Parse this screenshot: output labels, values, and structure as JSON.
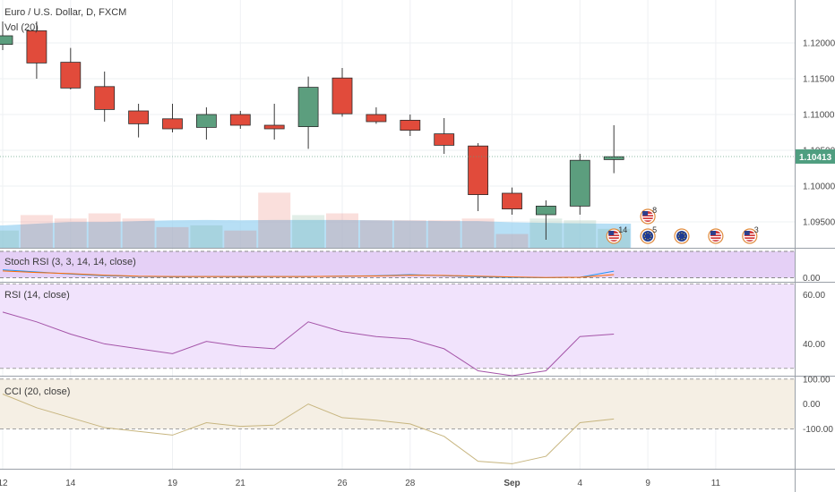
{
  "header": {
    "title": "Euro / U.S. Dollar, D, FXCM",
    "vol_label": "Vol (20)"
  },
  "colors": {
    "up": "#5c9e7e",
    "down": "#e14b3b",
    "grid": "#eef0f3",
    "stoch_band": "#e5d0f6",
    "rsi_band": "#f1e3fc",
    "cci_band": "#f5efe4",
    "vol_ma": "#9fd4f2",
    "last_price_bg": "#4f9e80"
  },
  "chart_data": [
    {
      "type": "candlestick",
      "title": "Euro / U.S. Dollar, D, FXCM",
      "x": [
        "Aug 12",
        "Aug 13",
        "Aug 14",
        "Aug 15",
        "Aug 16",
        "Aug 19",
        "Aug 20",
        "Aug 21",
        "Aug 22",
        "Aug 23",
        "Aug 26",
        "Aug 27",
        "Aug 28",
        "Aug 29",
        "Aug 30",
        "Sep 2",
        "Sep 3",
        "Sep 4",
        "Sep 5"
      ],
      "open": [
        1.1198,
        1.1217,
        1.1173,
        1.1139,
        1.1105,
        1.1094,
        1.1082,
        1.11,
        1.1085,
        1.1083,
        1.1151,
        1.11,
        1.1092,
        1.1073,
        1.1056,
        1.099,
        1.096,
        1.0972,
        1.1037
      ],
      "high": [
        1.123,
        1.123,
        1.1193,
        1.116,
        1.1115,
        1.1115,
        1.111,
        1.1105,
        1.1115,
        1.1153,
        1.1165,
        1.111,
        1.11,
        1.1095,
        1.106,
        1.0998,
        1.098,
        1.1045,
        1.1085
      ],
      "low": [
        1.119,
        1.115,
        1.1135,
        1.109,
        1.1068,
        1.1075,
        1.1065,
        1.108,
        1.1065,
        1.1052,
        1.1097,
        1.1087,
        1.107,
        1.1045,
        1.0965,
        1.096,
        1.0925,
        1.096,
        1.1018
      ],
      "close": [
        1.121,
        1.1172,
        1.1137,
        1.1107,
        1.1087,
        1.108,
        1.11,
        1.1085,
        1.108,
        1.1138,
        1.1101,
        1.109,
        1.1078,
        1.1057,
        1.0988,
        1.0968,
        1.0972,
        1.1036,
        1.1041
      ],
      "ylim": [
        1.0925,
        1.125
      ],
      "y_ticks": [
        "1.12000",
        "1.11500",
        "1.11000",
        "1.10500",
        "1.10000",
        "1.09500"
      ],
      "last_price": "1.10413",
      "x_tick_labels": [
        {
          "label": "12",
          "index": 0
        },
        {
          "label": "14",
          "index": 2
        },
        {
          "label": "19",
          "index": 5
        },
        {
          "label": "21",
          "index": 7
        },
        {
          "label": "26",
          "index": 10
        },
        {
          "label": "28",
          "index": 12
        },
        {
          "label": "Sep",
          "index": 15
        },
        {
          "label": "4",
          "index": 17
        },
        {
          "label": "9",
          "index": 19
        },
        {
          "label": "11",
          "index": 21
        }
      ]
    },
    {
      "type": "bar",
      "title": "Vol (20)",
      "values": [
        1.0,
        1.9,
        1.7,
        2.0,
        1.7,
        1.2,
        1.3,
        1.0,
        3.2,
        1.9,
        2.0,
        1.6,
        1.6,
        1.6,
        1.7,
        0.8,
        1.7,
        1.6,
        1.1
      ],
      "ma": [
        1.3,
        1.4,
        1.5,
        1.5,
        1.55,
        1.6,
        1.62,
        1.6,
        1.62,
        1.62,
        1.62,
        1.6,
        1.58,
        1.55,
        1.55,
        1.48,
        1.45,
        1.42,
        1.4
      ],
      "ylim": [
        0,
        4
      ]
    },
    {
      "type": "line",
      "title": "Stoch RSI (3, 3, 14, 14, close)",
      "series": [
        {
          "color": "#2196f3",
          "values": [
            30,
            22,
            14,
            8,
            5,
            4,
            5,
            4,
            5,
            5,
            6,
            8,
            12,
            8,
            4,
            1,
            0,
            2,
            25
          ]
        },
        {
          "color": "#ff6d00",
          "values": [
            26,
            20,
            16,
            10,
            6,
            5,
            5,
            5,
            5,
            5,
            6,
            7,
            10,
            9,
            6,
            3,
            1,
            2,
            12
          ]
        }
      ],
      "ylim": [
        -15,
        110
      ],
      "y_ticks": [
        "0.00"
      ]
    },
    {
      "type": "line",
      "title": "RSI (14, close)",
      "series": [
        {
          "color": "#a454a8",
          "values": [
            53,
            49,
            44,
            40,
            38,
            36,
            41,
            39,
            38,
            49,
            45,
            43,
            42,
            38,
            29,
            27,
            29,
            43,
            44
          ]
        }
      ],
      "ylim": [
        27,
        65
      ],
      "bands": [
        30,
        70
      ],
      "y_ticks": [
        "60.00",
        "40.00"
      ]
    },
    {
      "type": "line",
      "title": "CCI (20, close)",
      "series": [
        {
          "color": "#c7b57f",
          "values": [
            40,
            -15,
            -55,
            -95,
            -110,
            -125,
            -75,
            -90,
            -85,
            0,
            -55,
            -65,
            -80,
            -130,
            -230,
            -240,
            -210,
            -75,
            -60
          ]
        }
      ],
      "ylim": [
        -260,
        110
      ],
      "bands": [
        100,
        -100
      ],
      "y_ticks": [
        "100.00",
        "0.00",
        "-100.00"
      ]
    }
  ],
  "events": [
    {
      "label": "14",
      "flag": "us",
      "index": 18
    },
    {
      "label": "5",
      "flag": "eu",
      "index": 19
    },
    {
      "label": "8",
      "flag": "us",
      "index": 19
    },
    {
      "label": "",
      "flag": "eu",
      "index": 20
    },
    {
      "label": "",
      "flag": "us",
      "index": 21
    },
    {
      "label": "3",
      "flag": "us",
      "index": 22
    }
  ]
}
